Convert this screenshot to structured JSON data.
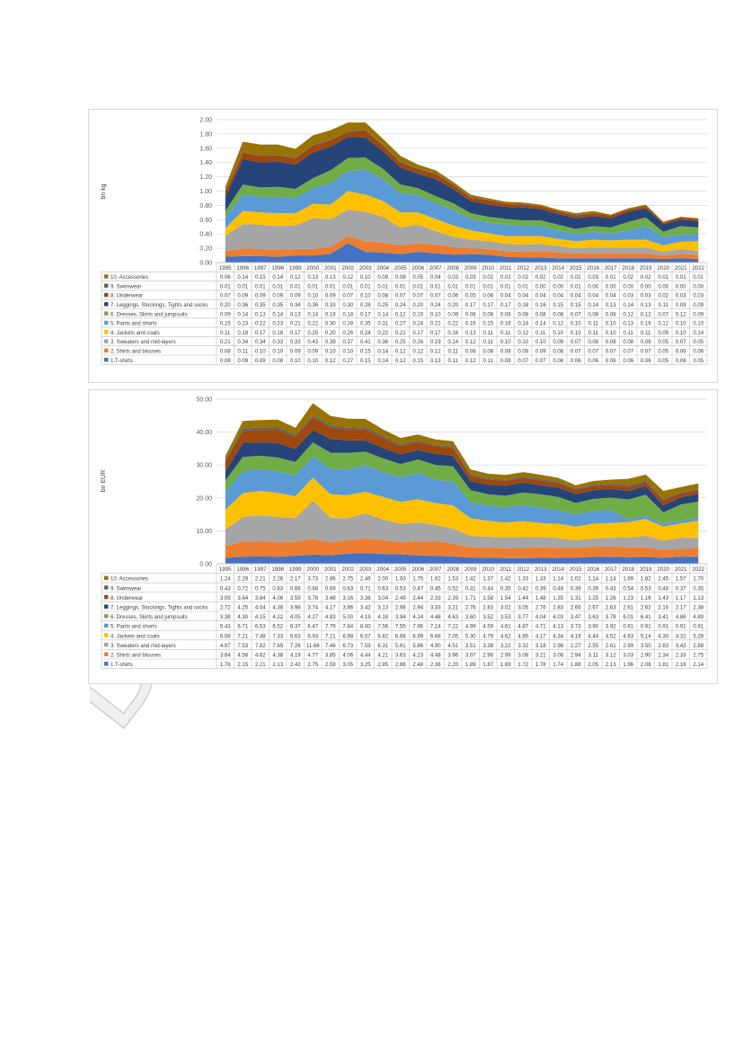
{
  "watermark": {
    "text": "DRAFT",
    "color": "#c8c8c8"
  },
  "colors": [
    "#4472c4",
    "#ed7d31",
    "#a5a5a5",
    "#ffc000",
    "#5b9bd5",
    "#70ad47",
    "#264478",
    "#9e480e",
    "#636363",
    "#997300"
  ],
  "chart_data": [
    {
      "type": "area",
      "stacked": true,
      "ylabel": "bn kg",
      "ylim": [
        0,
        2.0
      ],
      "yticks": [
        "0.00",
        "0.20",
        "0.40",
        "0.60",
        "0.80",
        "1.00",
        "1.20",
        "1.40",
        "1.60",
        "1.80",
        "2.00"
      ],
      "grid": true,
      "legend": "table-below",
      "x": [
        "1995",
        "1996",
        "1997",
        "1998",
        "1999",
        "2000",
        "2001",
        "2002",
        "2003",
        "2004",
        "2005",
        "2006",
        "2007",
        "2008",
        "2009",
        "2010",
        "2011",
        "2012",
        "2013",
        "2014",
        "2015",
        "2016",
        "2017",
        "2018",
        "2019",
        "2020",
        "2021",
        "2022"
      ],
      "series": [
        {
          "name": "1.T-shirts",
          "values": [
            "0.08",
            "0.09",
            "0.09",
            "0.08",
            "0.10",
            "0.10",
            "0.12",
            "0.27",
            "0.15",
            "0.14",
            "0.12",
            "0.15",
            "0.13",
            "0.11",
            "0.12",
            "0.11",
            "0.08",
            "0.07",
            "0.07",
            "0.06",
            "0.06",
            "0.06",
            "0.06",
            "0.06",
            "0.06",
            "0.05",
            "0.06",
            "0.05"
          ]
        },
        {
          "name": "2. Shirts and blouses",
          "values": [
            "0.08",
            "0.11",
            "0.10",
            "0.10",
            "0.09",
            "0.09",
            "0.10",
            "0.10",
            "0.15",
            "0.14",
            "0.12",
            "0.12",
            "0.12",
            "0.11",
            "0.08",
            "0.08",
            "0.08",
            "0.08",
            "0.09",
            "0.08",
            "0.07",
            "0.07",
            "0.07",
            "0.07",
            "0.07",
            "0.05",
            "0.06",
            "0.06"
          ]
        },
        {
          "name": "3. Sweaters and mid-layers",
          "values": [
            "0.21",
            "0.34",
            "0.34",
            "0.33",
            "0.33",
            "0.43",
            "0.39",
            "0.37",
            "0.41",
            "0.36",
            "0.25",
            "0.26",
            "0.19",
            "0.14",
            "0.12",
            "0.11",
            "0.10",
            "0.10",
            "0.10",
            "0.09",
            "0.07",
            "0.08",
            "0.08",
            "0.08",
            "0.08",
            "0.05",
            "0.07",
            "0.05"
          ]
        },
        {
          "name": "4. Jackets and coats",
          "values": [
            "0.11",
            "0.18",
            "0.17",
            "0.18",
            "0.17",
            "0.20",
            "0.20",
            "0.26",
            "0.24",
            "0.22",
            "0.21",
            "0.17",
            "0.17",
            "0.16",
            "0.13",
            "0.11",
            "0.11",
            "0.12",
            "0.11",
            "0.10",
            "0.10",
            "0.11",
            "0.10",
            "0.11",
            "0.11",
            "0.09",
            "0.10",
            "0.14"
          ]
        },
        {
          "name": "5. Pants and shorts",
          "values": [
            "0.15",
            "0.23",
            "0.22",
            "0.23",
            "0.21",
            "0.22",
            "0.30",
            "0.28",
            "0.35",
            "0.31",
            "0.27",
            "0.24",
            "0.22",
            "0.22",
            "0.16",
            "0.15",
            "0.16",
            "0.14",
            "0.14",
            "0.12",
            "0.10",
            "0.11",
            "0.10",
            "0.13",
            "0.19",
            "0.12",
            "0.10",
            "0.10"
          ]
        },
        {
          "name": "6. Dresses, Skirts and jumpsuits",
          "values": [
            "0.09",
            "0.14",
            "0.13",
            "0.14",
            "0.13",
            "0.14",
            "0.18",
            "0.18",
            "0.17",
            "0.14",
            "0.12",
            "0.10",
            "0.10",
            "0.09",
            "0.08",
            "0.08",
            "0.08",
            "0.08",
            "0.08",
            "0.08",
            "0.07",
            "0.08",
            "0.08",
            "0.12",
            "0.12",
            "0.07",
            "0.12",
            "0.09"
          ]
        },
        {
          "name": "7. Leggings, Stockings, Tights and socks",
          "values": [
            "0.20",
            "0.36",
            "0.35",
            "0.35",
            "0.34",
            "0.36",
            "0.33",
            "0.30",
            "0.28",
            "0.25",
            "0.24",
            "0.20",
            "0.24",
            "0.20",
            "0.17",
            "0.17",
            "0.17",
            "0.18",
            "0.16",
            "0.15",
            "0.15",
            "0.14",
            "0.13",
            "0.14",
            "0.13",
            "0.11",
            "0.09",
            "0.09"
          ]
        },
        {
          "name": "8. Underwear",
          "values": [
            "0.07",
            "0.09",
            "0.09",
            "0.09",
            "0.09",
            "0.10",
            "0.09",
            "0.07",
            "0.10",
            "0.08",
            "0.07",
            "0.07",
            "0.07",
            "0.06",
            "0.05",
            "0.06",
            "0.04",
            "0.04",
            "0.04",
            "0.04",
            "0.04",
            "0.04",
            "0.04",
            "0.03",
            "0.03",
            "0.02",
            "0.03",
            "0.03"
          ]
        },
        {
          "name": "9. Swimwear",
          "values": [
            "0.01",
            "0.01",
            "0.01",
            "0.01",
            "0.01",
            "0.01",
            "0.01",
            "0.01",
            "0.01",
            "0.01",
            "0.01",
            "0.01",
            "0.01",
            "0.01",
            "0.01",
            "0.01",
            "0.01",
            "0.01",
            "0.00",
            "0.00",
            "0.01",
            "0.00",
            "0.00",
            "0.00",
            "0.00",
            "0.00",
            "0.00",
            "0.00"
          ]
        },
        {
          "name": "10. Accessories",
          "values": [
            "0.06",
            "0.14",
            "0.15",
            "0.14",
            "0.12",
            "0.13",
            "0.13",
            "0.12",
            "0.10",
            "0.08",
            "0.08",
            "0.05",
            "0.04",
            "0.03",
            "0.03",
            "0.02",
            "0.02",
            "0.02",
            "0.02",
            "0.02",
            "0.02",
            "0.03",
            "0.01",
            "0.02",
            "0.02",
            "0.01",
            "0.01",
            "0.01"
          ]
        }
      ]
    },
    {
      "type": "area",
      "stacked": true,
      "ylabel": "bn EUR",
      "ylim": [
        0,
        50
      ],
      "yticks": [
        "0.00",
        "10.00",
        "20.00",
        "30.00",
        "40.00",
        "50.00"
      ],
      "grid": true,
      "legend": "table-below",
      "x": [
        "1995",
        "1996",
        "1997",
        "1998",
        "1999",
        "2000",
        "2001",
        "2002",
        "2003",
        "2004",
        "2005",
        "2006",
        "2007",
        "2008",
        "2009",
        "2010",
        "2011",
        "2012",
        "2013",
        "2014",
        "2015",
        "2016",
        "2017",
        "2018",
        "2019",
        "2020",
        "2021",
        "2022"
      ],
      "series": [
        {
          "name": "1.T-shirts",
          "values": [
            "1.76",
            "2.15",
            "2.21",
            "2.13",
            "2.42",
            "2.75",
            "2.59",
            "3.05",
            "3.25",
            "2.95",
            "2.88",
            "2.48",
            "2.36",
            "2.20",
            "1.89",
            "1.87",
            "1.69",
            "1.72",
            "1.78",
            "1.74",
            "1.88",
            "2.05",
            "2.13",
            "1.96",
            "2.08",
            "1.81",
            "2.16",
            "2.14"
          ]
        },
        {
          "name": "2. Shirts and blouses",
          "values": [
            "3.64",
            "4.56",
            "4.62",
            "4.38",
            "4.19",
            "4.77",
            "3.85",
            "4.06",
            "4.44",
            "4.21",
            "3.63",
            "4.23",
            "4.48",
            "3.96",
            "3.07",
            "2.98",
            "2.99",
            "3.08",
            "3.21",
            "3.08",
            "2.94",
            "3.11",
            "3.12",
            "3.03",
            "2.90",
            "2.34",
            "2.33",
            "2.75"
          ]
        },
        {
          "name": "3. Sweaters and mid-layers",
          "values": [
            "4.97",
            "7.53",
            "7.82",
            "7.69",
            "7.26",
            "11.68",
            "7.46",
            "6.73",
            "7.59",
            "6.31",
            "5.61",
            "5.86",
            "4.90",
            "4.51",
            "3.51",
            "3.38",
            "3.22",
            "3.32",
            "3.18",
            "2.98",
            "2.27",
            "2.55",
            "2.61",
            "2.99",
            "3.50",
            "2.83",
            "3.43",
            "2.88"
          ]
        },
        {
          "name": "4. Jackets and coats",
          "values": [
            "6.08",
            "7.21",
            "7.48",
            "7.33",
            "6.63",
            "6.93",
            "7.21",
            "6.98",
            "6.57",
            "6.82",
            "6.68",
            "6.99",
            "6.68",
            "7.05",
            "5.30",
            "4.79",
            "4.62",
            "4.85",
            "4.17",
            "4.34",
            "4.19",
            "4.44",
            "4.52",
            "4.63",
            "5.14",
            "4.30",
            "4.32",
            "5.28"
          ]
        },
        {
          "name": "5. Pants and shorts",
          "values": [
            "5.43",
            "6.71",
            "6.53",
            "6.52",
            "6.37",
            "6.47",
            "7.79",
            "7.84",
            "8.00",
            "7.56",
            "7.55",
            "7.96",
            "7.14",
            "7.22",
            "4.99",
            "4.59",
            "4.61",
            "4.87",
            "4.71",
            "4.13",
            "3.73",
            "3.90",
            "3.92",
            "0.91",
            "0.91",
            "0.91",
            "0.91",
            "0.91"
          ]
        },
        {
          "name": "6. Dresses, Skirts and jumpsuits",
          "values": [
            "3.38",
            "4.30",
            "4.15",
            "4.22",
            "4.05",
            "4.27",
            "4.83",
            "5.00",
            "4.19",
            "4.18",
            "3.94",
            "4.14",
            "4.48",
            "4.63",
            "3.60",
            "3.52",
            "3.53",
            "3.77",
            "4.04",
            "4.03",
            "3.47",
            "3.63",
            "3.78",
            "6.01",
            "6.41",
            "3.41",
            "4.86",
            "4.89"
          ]
        },
        {
          "name": "7. Leggings, Stockings, Tights and socks",
          "values": [
            "2.72",
            "4.25",
            "4.04",
            "4.38",
            "3.98",
            "3.74",
            "4.17",
            "3.86",
            "3.42",
            "3.13",
            "2.98",
            "2.94",
            "3.33",
            "3.21",
            "2.76",
            "2.83",
            "3.02",
            "3.05",
            "2.76",
            "2.83",
            "2.66",
            "2.67",
            "2.63",
            "2.61",
            "2.62",
            "2.16",
            "2.17",
            "2.38"
          ]
        },
        {
          "name": "8. Underwear",
          "values": [
            "3.09",
            "3.64",
            "3.84",
            "4.06",
            "3.59",
            "3.78",
            "3.48",
            "3.16",
            "3.36",
            "3.04",
            "2.49",
            "2.44",
            "2.33",
            "2.39",
            "1.71",
            "1.58",
            "1.54",
            "1.44",
            "1.48",
            "1.35",
            "1.31",
            "1.25",
            "1.26",
            "1.23",
            "1.16",
            "1.43",
            "1.17",
            "1.13"
          ]
        },
        {
          "name": "9. Swimwear",
          "values": [
            "0.43",
            "0.72",
            "0.75",
            "0.83",
            "0.68",
            "0.68",
            "0.69",
            "0.63",
            "0.71",
            "0.63",
            "0.53",
            "0.47",
            "0.45",
            "0.52",
            "0.41",
            "0.44",
            "0.35",
            "0.42",
            "0.39",
            "0.48",
            "0.39",
            "0.39",
            "0.43",
            "0.54",
            "0.53",
            "0.48",
            "0.37",
            "0.35"
          ]
        },
        {
          "name": "10. Accessories",
          "values": [
            "1.24",
            "2.29",
            "2.21",
            "2.26",
            "2.17",
            "3.73",
            "2.86",
            "2.75",
            "2.46",
            "2.00",
            "1.93",
            "1.75",
            "1.62",
            "1.53",
            "1.42",
            "1.37",
            "1.42",
            "1.33",
            "1.33",
            "1.14",
            "1.02",
            "1.14",
            "1.14",
            "1.89",
            "1.82",
            "2.45",
            "1.57",
            "1.70"
          ]
        }
      ]
    }
  ]
}
